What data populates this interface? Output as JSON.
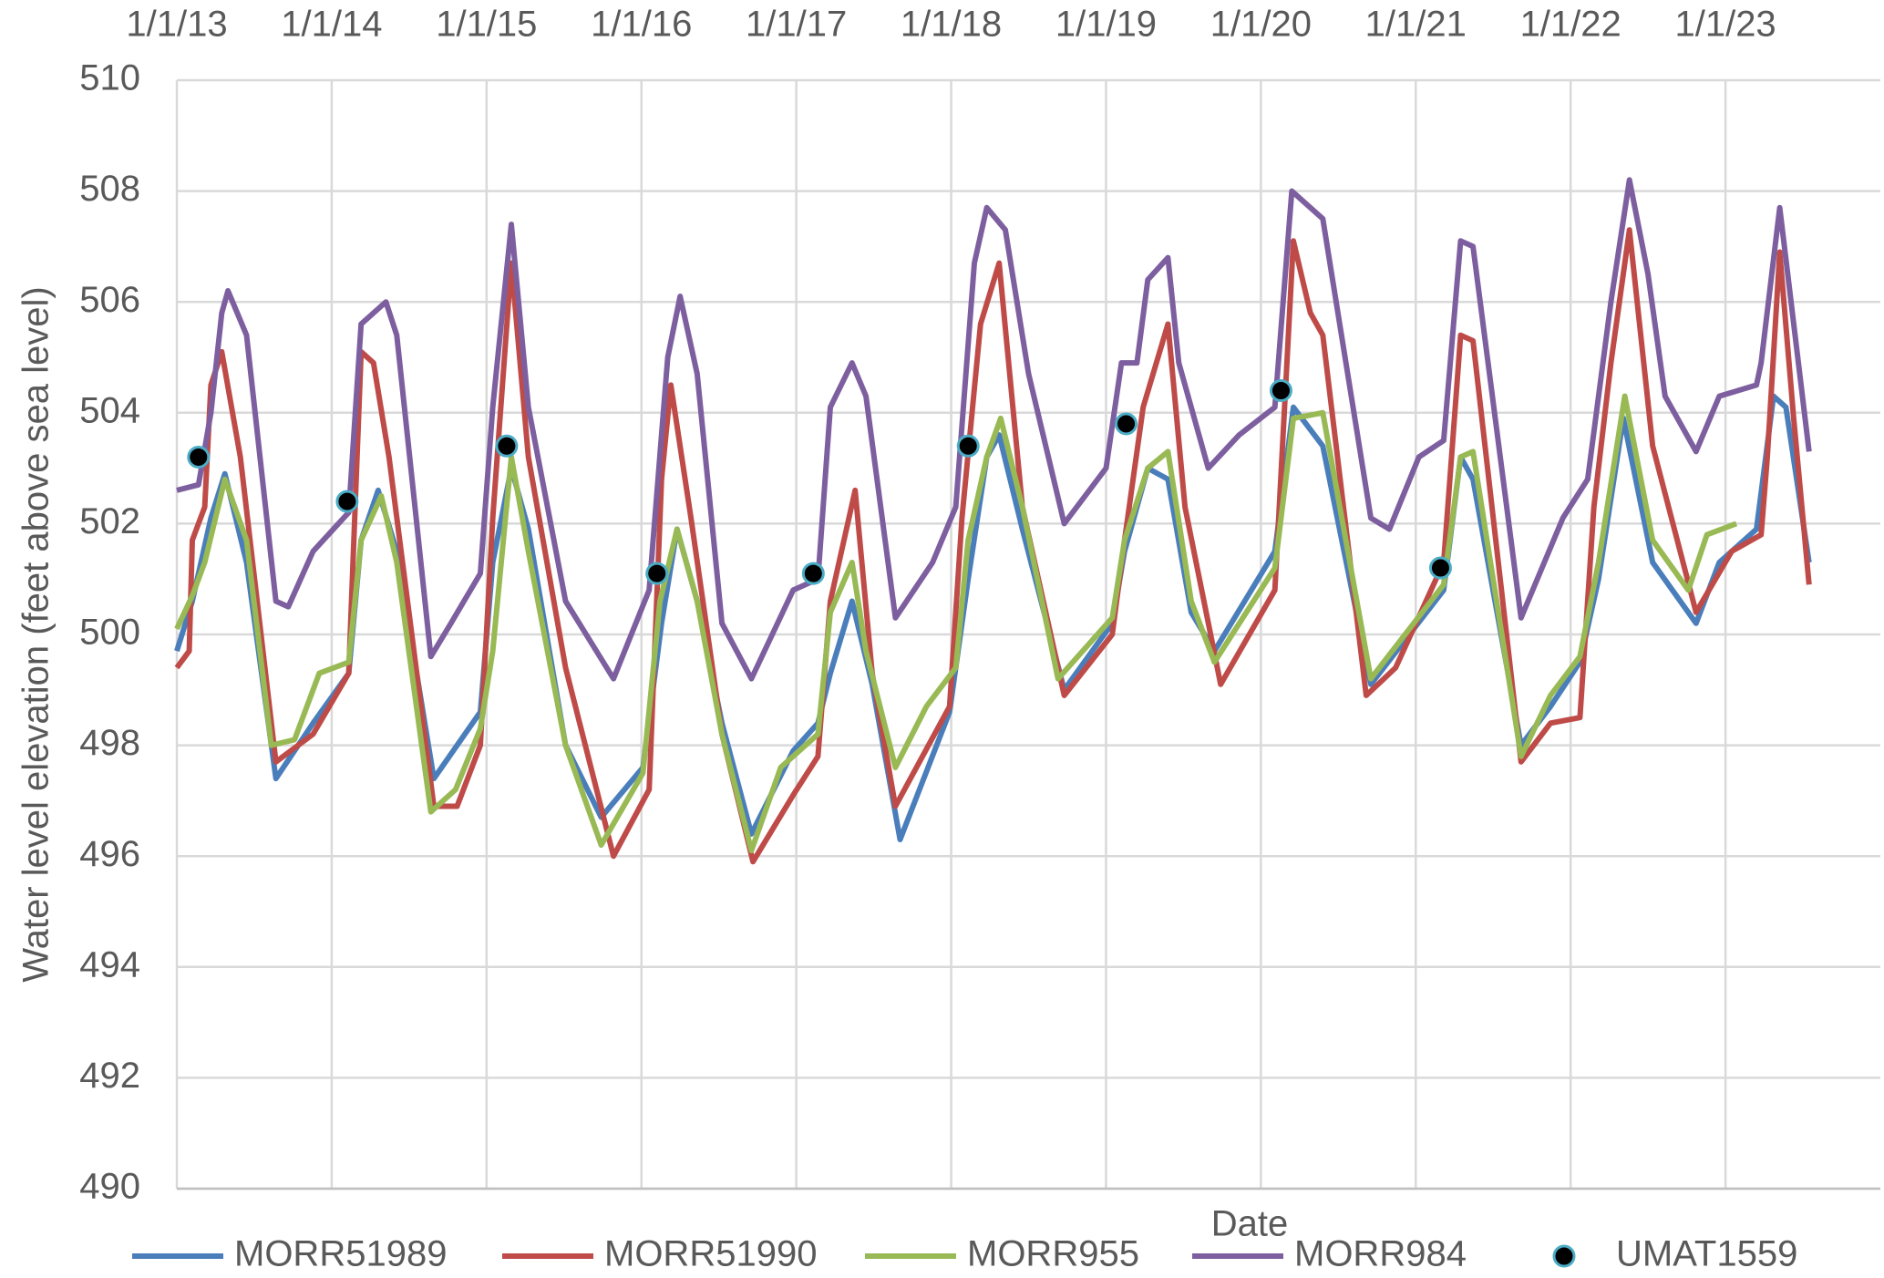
{
  "chart_data": {
    "type": "line",
    "x_label": "Date",
    "y_label": "Water level elevation (feet above sea level)",
    "xlim": [
      2013,
      2024
    ],
    "xticks": [
      {
        "value": 2013,
        "label": "1/1/13"
      },
      {
        "value": 2014,
        "label": "1/1/14"
      },
      {
        "value": 2015,
        "label": "1/1/15"
      },
      {
        "value": 2016,
        "label": "1/1/16"
      },
      {
        "value": 2017,
        "label": "1/1/17"
      },
      {
        "value": 2018,
        "label": "1/1/18"
      },
      {
        "value": 2019,
        "label": "1/1/19"
      },
      {
        "value": 2020,
        "label": "1/1/20"
      },
      {
        "value": 2021,
        "label": "1/1/21"
      },
      {
        "value": 2022,
        "label": "1/1/22"
      },
      {
        "value": 2023,
        "label": "1/1/23"
      }
    ],
    "ylim": [
      490,
      510
    ],
    "yticks": [
      490,
      492,
      494,
      496,
      498,
      500,
      502,
      504,
      506,
      508,
      510
    ],
    "grid": true,
    "legend": "bottom",
    "series": [
      {
        "name": "MORR51989",
        "color": "#4a7ebb",
        "style": "line",
        "x": [
          2013.0,
          2013.1,
          2013.22,
          2013.31,
          2013.45,
          2013.64,
          2013.88,
          2014.11,
          2014.19,
          2014.3,
          2014.42,
          2014.66,
          2014.96,
          2015.04,
          2015.16,
          2015.27,
          2015.51,
          2015.74,
          2016.01,
          2016.13,
          2016.23,
          2016.36,
          2016.52,
          2016.71,
          2016.98,
          2017.14,
          2017.22,
          2017.36,
          2017.49,
          2017.67,
          2017.99,
          2018.11,
          2018.23,
          2018.31,
          2018.46,
          2018.73,
          2019.04,
          2019.12,
          2019.27,
          2019.4,
          2019.55,
          2019.7,
          2020.09,
          2020.21,
          2020.4,
          2020.71,
          2021.18,
          2021.29,
          2021.37,
          2021.68,
          2021.87,
          2022.06,
          2022.18,
          2022.34,
          2022.53,
          2022.81,
          2022.96,
          2023.2,
          2023.31,
          2023.39,
          2023.54
        ],
        "values": [
          499.7,
          500.6,
          502.1,
          502.9,
          501.3,
          497.4,
          498.4,
          499.3,
          501.7,
          502.6,
          501.5,
          497.4,
          498.6,
          501.3,
          503.0,
          501.9,
          498.0,
          496.7,
          497.6,
          500.2,
          501.9,
          500.6,
          498.4,
          496.4,
          497.9,
          498.4,
          499.3,
          500.6,
          499.1,
          496.3,
          498.6,
          501.0,
          503.2,
          503.6,
          501.9,
          499.0,
          500.2,
          501.5,
          503.0,
          502.8,
          500.4,
          499.7,
          501.5,
          504.1,
          503.4,
          499.1,
          500.8,
          503.2,
          502.8,
          498.0,
          498.7,
          499.5,
          501.0,
          503.9,
          501.3,
          500.2,
          501.3,
          501.9,
          504.3,
          504.1,
          501.3
        ]
      },
      {
        "name": "MORR51990",
        "color": "#be4b48",
        "style": "line",
        "x": [
          2013.0,
          2013.08,
          2013.1,
          2013.18,
          2013.22,
          2013.29,
          2013.41,
          2013.64,
          2013.88,
          2014.11,
          2014.19,
          2014.27,
          2014.37,
          2014.66,
          2014.81,
          2014.96,
          2015.04,
          2015.16,
          2015.27,
          2015.51,
          2015.82,
          2016.05,
          2016.13,
          2016.19,
          2016.32,
          2016.52,
          2016.72,
          2016.98,
          2017.14,
          2017.22,
          2017.38,
          2017.49,
          2017.64,
          2017.99,
          2018.07,
          2018.19,
          2018.31,
          2018.46,
          2018.73,
          2019.04,
          2019.12,
          2019.24,
          2019.4,
          2019.51,
          2019.74,
          2020.09,
          2020.21,
          2020.32,
          2020.4,
          2020.68,
          2020.87,
          2021.18,
          2021.29,
          2021.37,
          2021.68,
          2021.87,
          2022.06,
          2022.15,
          2022.26,
          2022.38,
          2022.53,
          2022.81,
          2023.04,
          2023.23,
          2023.27,
          2023.35,
          2023.44,
          2023.54
        ],
        "values": [
          499.4,
          499.7,
          501.7,
          502.3,
          504.5,
          505.1,
          503.2,
          497.7,
          498.2,
          499.3,
          505.1,
          504.9,
          503.2,
          496.9,
          496.9,
          498.0,
          502.1,
          506.7,
          503.2,
          499.4,
          496.0,
          497.2,
          502.8,
          504.5,
          502.1,
          498.2,
          495.9,
          497.1,
          497.8,
          500.6,
          502.6,
          499.3,
          496.9,
          498.7,
          502.1,
          505.6,
          506.7,
          502.3,
          498.9,
          500.0,
          501.7,
          504.1,
          505.6,
          502.3,
          499.1,
          500.8,
          507.1,
          505.8,
          505.4,
          498.9,
          499.4,
          501.3,
          505.4,
          505.3,
          497.7,
          498.4,
          498.5,
          502.3,
          504.9,
          507.3,
          503.4,
          500.4,
          501.5,
          501.8,
          503.2,
          506.9,
          503.9,
          500.9
        ]
      },
      {
        "name": "MORR955",
        "color": "#98b954",
        "style": "line",
        "x": [
          2013.0,
          2013.1,
          2013.18,
          2013.31,
          2013.45,
          2013.61,
          2013.76,
          2013.92,
          2014.11,
          2014.19,
          2014.32,
          2014.42,
          2014.64,
          2014.8,
          2014.96,
          2015.04,
          2015.16,
          2015.27,
          2015.51,
          2015.74,
          2016.01,
          2016.12,
          2016.23,
          2016.36,
          2016.52,
          2016.71,
          2016.9,
          2017.14,
          2017.22,
          2017.36,
          2017.45,
          2017.64,
          2017.84,
          2018.03,
          2018.11,
          2018.23,
          2018.32,
          2018.46,
          2018.69,
          2019.04,
          2019.12,
          2019.27,
          2019.4,
          2019.55,
          2019.7,
          2020.09,
          2020.21,
          2020.4,
          2020.71,
          2021.18,
          2021.29,
          2021.37,
          2021.68,
          2021.87,
          2022.06,
          2022.18,
          2022.35,
          2022.53,
          2022.76,
          2022.88,
          2023.07
        ],
        "values": [
          500.1,
          500.7,
          501.3,
          502.8,
          501.7,
          498.0,
          498.1,
          499.3,
          499.5,
          501.7,
          502.5,
          501.3,
          496.8,
          497.2,
          498.3,
          499.7,
          503.2,
          501.5,
          498.0,
          496.2,
          497.5,
          500.6,
          501.9,
          500.6,
          498.2,
          496.1,
          497.6,
          498.2,
          500.4,
          501.3,
          499.7,
          497.6,
          498.7,
          499.4,
          501.7,
          503.2,
          503.9,
          502.3,
          499.2,
          500.3,
          501.7,
          503.0,
          503.3,
          500.6,
          499.5,
          501.2,
          503.9,
          504.0,
          499.2,
          500.9,
          503.2,
          503.3,
          497.8,
          498.9,
          499.6,
          501.3,
          504.3,
          501.7,
          500.8,
          501.8,
          502.0
        ]
      },
      {
        "name": "MORR984",
        "color": "#7d5fa0",
        "style": "line",
        "x": [
          2013.0,
          2013.14,
          2013.22,
          2013.29,
          2013.33,
          2013.45,
          2013.64,
          2013.72,
          2013.88,
          2014.11,
          2014.19,
          2014.35,
          2014.42,
          2014.64,
          2014.77,
          2014.96,
          2015.04,
          2015.16,
          2015.27,
          2015.51,
          2015.82,
          2016.05,
          2016.17,
          2016.25,
          2016.36,
          2016.52,
          2016.71,
          2016.98,
          2017.14,
          2017.22,
          2017.36,
          2017.45,
          2017.64,
          2017.88,
          2018.03,
          2018.15,
          2018.23,
          2018.35,
          2018.5,
          2018.73,
          2019.0,
          2019.1,
          2019.2,
          2019.27,
          2019.4,
          2019.47,
          2019.66,
          2019.86,
          2020.09,
          2020.2,
          2020.4,
          2020.71,
          2020.83,
          2021.02,
          2021.18,
          2021.29,
          2021.37,
          2021.68,
          2021.95,
          2022.11,
          2022.26,
          2022.38,
          2022.5,
          2022.61,
          2022.81,
          2022.96,
          2023.2,
          2023.23,
          2023.35,
          2023.54
        ],
        "values": [
          502.6,
          502.7,
          504.0,
          505.8,
          506.2,
          505.4,
          500.6,
          500.5,
          501.5,
          502.2,
          505.6,
          506.0,
          505.4,
          499.6,
          500.2,
          501.1,
          504.1,
          507.4,
          504.1,
          500.6,
          499.2,
          500.8,
          505.0,
          506.1,
          504.7,
          500.2,
          499.2,
          500.8,
          501.0,
          504.1,
          504.9,
          504.3,
          500.3,
          501.3,
          502.3,
          506.7,
          507.7,
          507.3,
          504.7,
          502.0,
          503.0,
          504.9,
          504.9,
          506.4,
          506.8,
          504.9,
          503.0,
          503.6,
          504.1,
          508.0,
          507.5,
          502.1,
          501.9,
          503.2,
          503.5,
          507.1,
          507.0,
          500.3,
          502.1,
          502.8,
          506.0,
          508.2,
          506.5,
          504.3,
          503.3,
          504.3,
          504.5,
          504.9,
          507.7,
          503.3
        ]
      },
      {
        "name": "UMAT1559",
        "color": "#000000",
        "edge_color": "#4bacc6",
        "style": "markers",
        "x": [
          2013.14,
          2014.1,
          2015.13,
          2016.1,
          2017.11,
          2018.11,
          2019.13,
          2020.13,
          2021.16
        ],
        "values": [
          503.2,
          502.4,
          503.4,
          501.1,
          501.1,
          503.4,
          503.8,
          504.4,
          501.2
        ]
      }
    ]
  }
}
